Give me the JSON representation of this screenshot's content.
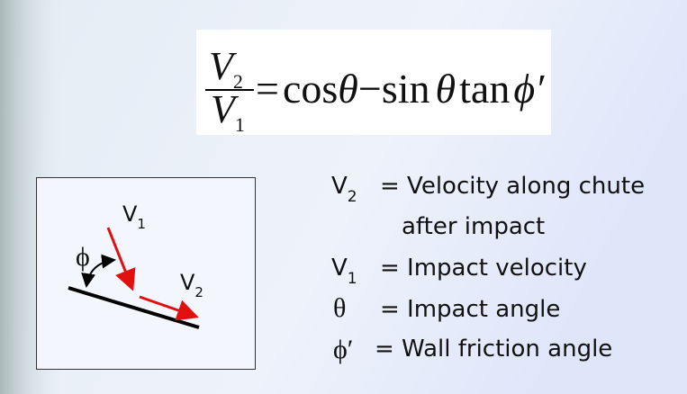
{
  "equation": {
    "numerator": {
      "base": "V",
      "sub": "2"
    },
    "denominator": {
      "base": "V",
      "sub": "1"
    },
    "rhs": [
      "=",
      "cos",
      "θ",
      "−",
      "sin",
      "θ",
      "tan",
      "ϕ′"
    ]
  },
  "diagram": {
    "incoming": {
      "base": "V",
      "sub": "1"
    },
    "outgoing": {
      "base": "V",
      "sub": "2"
    },
    "angle": "ϕ"
  },
  "definitions": [
    {
      "symbol": "V",
      "sub": "2",
      "text": "= Velocity along chute",
      "continuation": "after impact"
    },
    {
      "symbol": "V",
      "sub": "1",
      "text": "= Impact velocity"
    },
    {
      "symbol": "θ",
      "text": "= Impact angle"
    },
    {
      "symbol": "ϕ′",
      "text": "= Wall friction angle"
    }
  ]
}
